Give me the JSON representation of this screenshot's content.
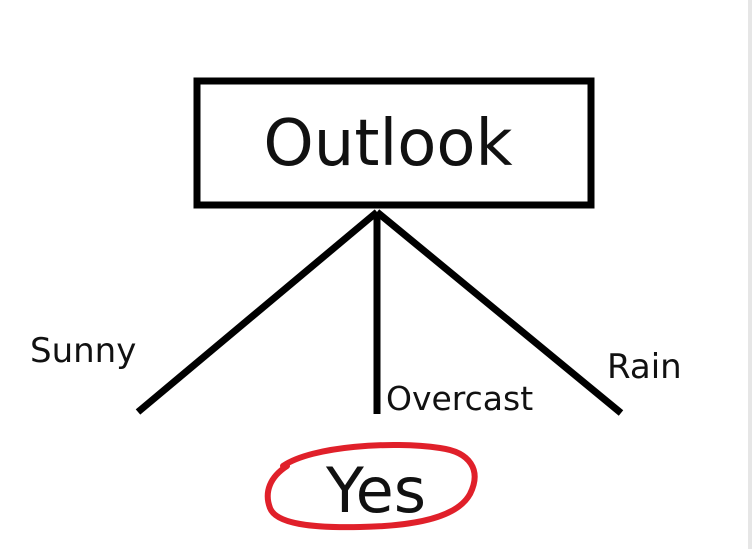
{
  "tree": {
    "root": {
      "label": "Outlook"
    },
    "branches": [
      {
        "label": "Sunny"
      },
      {
        "label": "Overcast"
      },
      {
        "label": "Rain"
      }
    ],
    "leaf": {
      "label": "Yes",
      "highlight_color": "#e0202a"
    }
  },
  "colors": {
    "stroke": "#000000",
    "background": "#ffffff",
    "highlight": "#e0202a"
  }
}
